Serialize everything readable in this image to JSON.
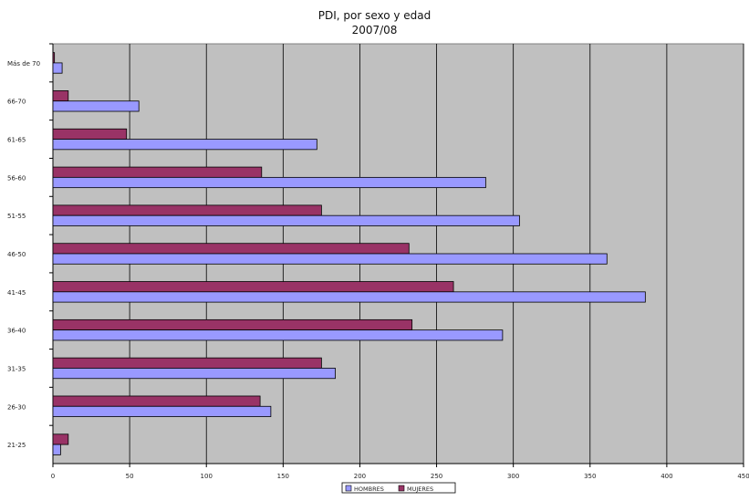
{
  "chart_data": {
    "type": "bar",
    "orientation": "horizontal",
    "title": "PDI, por sexo y edad",
    "subtitle": "2007/08",
    "categories": [
      "21-25",
      "26-30",
      "31-35",
      "36-40",
      "41-45",
      "46-50",
      "51-55",
      "56-60",
      "61-65",
      "66-70",
      "Más de 70"
    ],
    "series": [
      {
        "name": "HOMBRES",
        "values": [
          5,
          142,
          184,
          293,
          386,
          361,
          304,
          282,
          172,
          56,
          6
        ]
      },
      {
        "name": "MUJERES",
        "values": [
          10,
          135,
          175,
          234,
          261,
          232,
          175,
          136,
          48,
          10,
          1
        ]
      }
    ],
    "xlim": [
      0,
      450
    ],
    "xticks": [
      0,
      50,
      100,
      150,
      200,
      250,
      300,
      350,
      400,
      450
    ],
    "grid": true,
    "legend_position": "bottom",
    "colors": {
      "plot_bg": "#c0c0c0",
      "HOMBRES": "#9999ff",
      "MUJERES": "#993366",
      "grid": "#000000"
    }
  }
}
